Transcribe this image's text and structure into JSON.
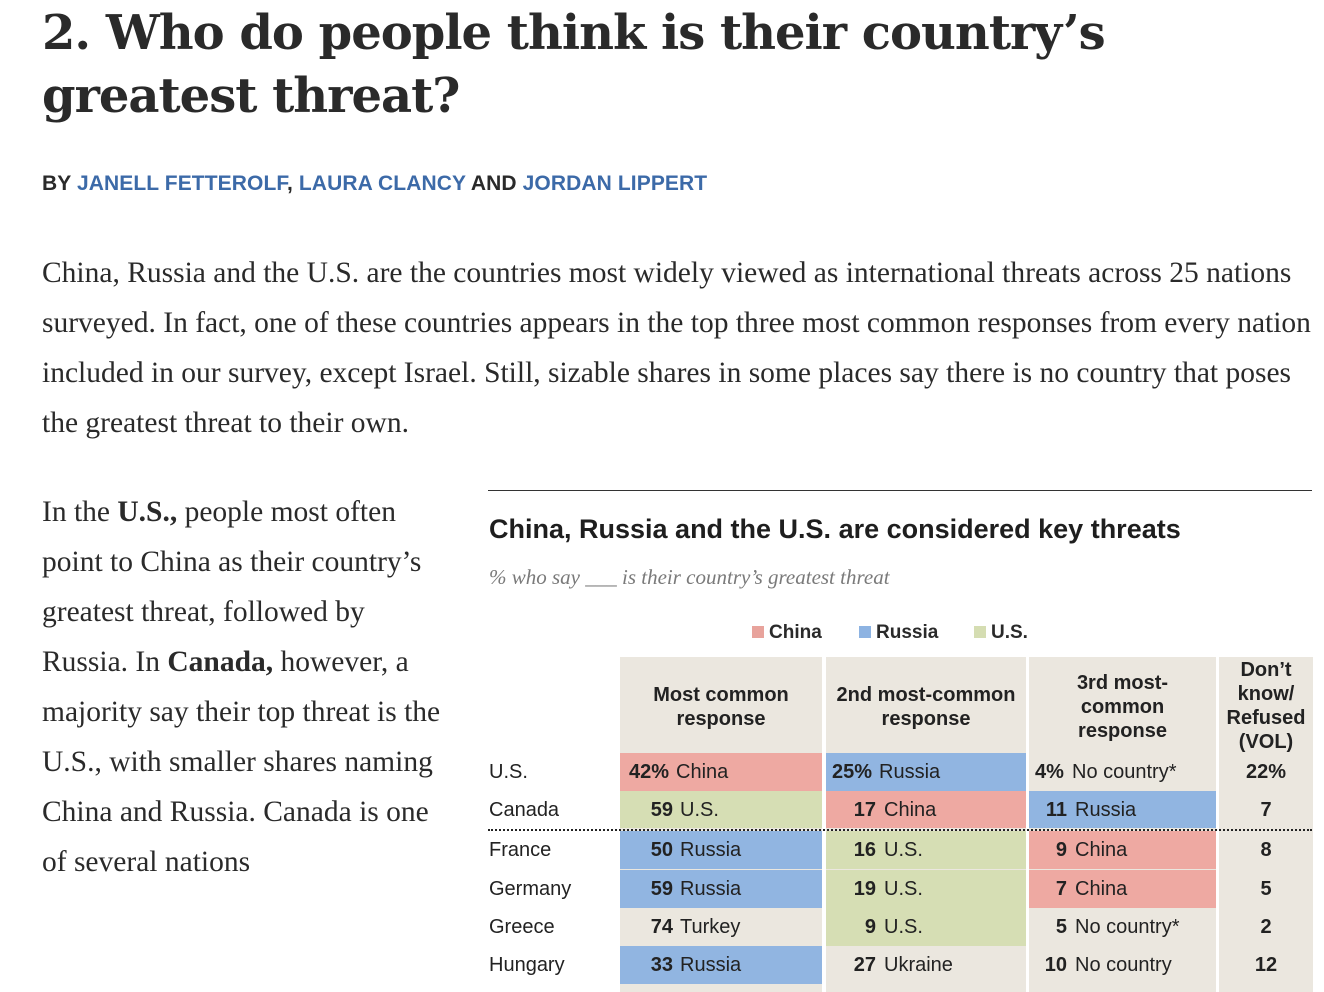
{
  "heading": "2. Who do people think is their country’s greatest threat?",
  "byline": {
    "prefix": "BY",
    "author1": "JANELL FETTEROLF",
    "sep1": ",",
    "author2": "LAURA CLANCY",
    "and": "AND",
    "author3": "JORDAN LIPPERT"
  },
  "intro": "China, Russia and the U.S. are the countries most widely viewed as international threats across 25 nations surveyed. In fact, one of these countries appears in the top three most common responses from every nation included in our survey, except Israel. Still, sizable shares in some places say there is no country that poses the greatest threat to their own.",
  "side": {
    "t1": "In the ",
    "b1": "U.S.,",
    "t2": " people most often point to China as their country’s greatest threat, followed by Russia. In ",
    "b2": "Canada,",
    "t3": " however, a majority say their top threat is the U.S., with smaller shares naming China and Russia. Canada is one of several nations"
  },
  "figure": {
    "title": "China, Russia and the U.S. are considered key threats",
    "subtitle": "% who say ___ is their country’s greatest threat",
    "legend": [
      {
        "label": "China",
        "color": "#e8a39c"
      },
      {
        "label": "Russia",
        "color": "#8db3e2"
      },
      {
        "label": "U.S.",
        "color": "#d5ddb2"
      }
    ],
    "headers": {
      "c1": "Most common response",
      "c2": "2nd most-common response",
      "c3": "3rd most-common response",
      "c4": "Don’t know/ Refused (VOL)"
    },
    "colors": {
      "China": "#eea9a2",
      "Russia": "#91b5e1",
      "U.S.": "#d6deb4",
      "other": "#ebe7df"
    },
    "rows": [
      {
        "country": "U.S.",
        "c1": {
          "n": "42%",
          "label": "China"
        },
        "c2": {
          "n": "25%",
          "label": "Russia"
        },
        "c3": {
          "n": "4%",
          "label": "No country*"
        },
        "dk": "22%"
      },
      {
        "country": "Canada",
        "c1": {
          "n": "59",
          "label": "U.S."
        },
        "c2": {
          "n": "17",
          "label": "China"
        },
        "c3": {
          "n": "11",
          "label": "Russia"
        },
        "dk": "7"
      },
      {
        "country": "France",
        "c1": {
          "n": "50",
          "label": "Russia"
        },
        "c2": {
          "n": "16",
          "label": "U.S."
        },
        "c3": {
          "n": "9",
          "label": "China"
        },
        "dk": "8"
      },
      {
        "country": "Germany",
        "c1": {
          "n": "59",
          "label": "Russia"
        },
        "c2": {
          "n": "19",
          "label": "U.S."
        },
        "c3": {
          "n": "7",
          "label": "China"
        },
        "dk": "5"
      },
      {
        "country": "Greece",
        "c1": {
          "n": "74",
          "label": "Turkey"
        },
        "c2": {
          "n": "9",
          "label": "U.S."
        },
        "c3": {
          "n": "5",
          "label": "No country*"
        },
        "dk": "2"
      },
      {
        "country": "Hungary",
        "c1": {
          "n": "33",
          "label": "Russia"
        },
        "c2": {
          "n": "27",
          "label": "Ukraine"
        },
        "c3": {
          "n": "10",
          "label": "No country"
        },
        "dk": "12"
      }
    ]
  }
}
